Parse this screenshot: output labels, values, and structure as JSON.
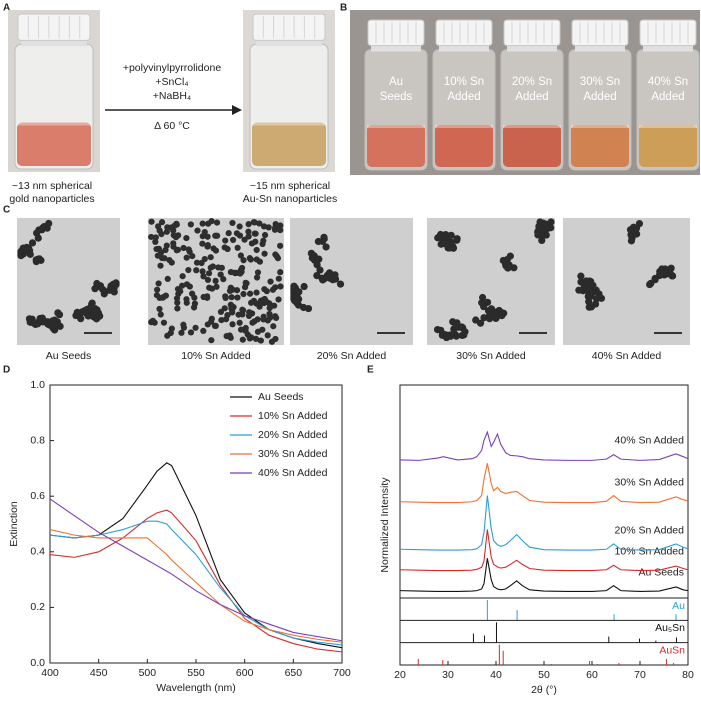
{
  "panel_a": {
    "label": "A",
    "reagents": [
      "+polyvinylpyrrolidone",
      "+SnCl₄",
      "+NaBH₄"
    ],
    "condition": "Δ 60 °C",
    "before": [
      "~13 nm spherical",
      "gold nanoparticles"
    ],
    "after": [
      "~15 nm spherical",
      "Au-Sn nanoparticles"
    ]
  },
  "panel_b": {
    "label": "B",
    "vials": [
      [
        "Au",
        "Seeds"
      ],
      [
        "10% Sn",
        "Added"
      ],
      [
        "20% Sn",
        "Added"
      ],
      [
        "30% Sn",
        "Added"
      ],
      [
        "40% Sn",
        "Added"
      ]
    ]
  },
  "panel_c": {
    "label": "C",
    "images": [
      "Au Seeds",
      "10% Sn Added",
      "20% Sn Added",
      "30% Sn Added",
      "40% Sn Added"
    ]
  },
  "chart_data": [
    {
      "type": "line",
      "label": "D",
      "xlabel": "Wavelength (nm)",
      "ylabel": "Extinction",
      "x": [
        400,
        425,
        450,
        475,
        500,
        510,
        520,
        525,
        550,
        575,
        600,
        625,
        650,
        675,
        700
      ],
      "xlim": [
        400,
        700
      ],
      "xticks": [
        400,
        450,
        500,
        550,
        600,
        650,
        700
      ],
      "ylim": [
        0,
        1
      ],
      "yticks": [
        {
          "value": 0,
          "label": "0.0"
        },
        0.2,
        0.4,
        0.6,
        0.8,
        {
          "value": 1,
          "label": "1.0"
        }
      ],
      "legend": "upper right",
      "series": [
        {
          "name": "Au Seeds",
          "color": "#111111",
          "values": [
            0.46,
            0.45,
            0.46,
            0.52,
            0.64,
            0.69,
            0.72,
            0.71,
            0.53,
            0.3,
            0.18,
            0.12,
            0.09,
            0.07,
            0.055
          ]
        },
        {
          "name": "10% Sn Added",
          "color": "#d42a2a",
          "values": [
            0.39,
            0.38,
            0.4,
            0.45,
            0.52,
            0.54,
            0.55,
            0.54,
            0.44,
            0.28,
            0.16,
            0.1,
            0.07,
            0.05,
            0.04
          ]
        },
        {
          "name": "20% Sn Added",
          "color": "#2a9fd6",
          "values": [
            0.46,
            0.45,
            0.46,
            0.48,
            0.51,
            0.51,
            0.5,
            0.48,
            0.39,
            0.27,
            0.17,
            0.12,
            0.09,
            0.075,
            0.065
          ]
        },
        {
          "name": "30% Sn Added",
          "color": "#f07030",
          "values": [
            0.48,
            0.46,
            0.45,
            0.45,
            0.45,
            0.42,
            0.39,
            0.37,
            0.29,
            0.21,
            0.15,
            0.12,
            0.1,
            0.085,
            0.075
          ]
        },
        {
          "name": "40% Sn Added",
          "color": "#7b3fb5",
          "values": [
            0.59,
            0.53,
            0.47,
            0.42,
            0.37,
            0.35,
            0.33,
            0.32,
            0.26,
            0.21,
            0.17,
            0.14,
            0.11,
            0.095,
            0.08
          ]
        }
      ]
    },
    {
      "type": "line",
      "label": "E",
      "xlabel": "2θ (°)",
      "ylabel": "Normalized Intensity",
      "x": [
        20,
        24,
        28,
        29,
        32,
        35,
        36,
        37,
        37.5,
        38.2,
        39,
        39.5,
        40.3,
        41,
        42,
        43,
        44.3,
        45.5,
        47,
        50,
        55,
        60,
        63,
        64.5,
        66,
        70,
        74,
        77.5,
        79,
        80
      ],
      "xlim": [
        20,
        80
      ],
      "xticks": [
        20,
        30,
        40,
        50,
        60,
        70,
        80
      ],
      "ylim": [
        0,
        5.2
      ],
      "series": [
        {
          "name": "Au Seeds",
          "color": "#111111",
          "values": [
            0.18,
            0.17,
            0.16,
            0.16,
            0.16,
            0.17,
            0.18,
            0.22,
            0.35,
            0.97,
            0.45,
            0.28,
            0.22,
            0.2,
            0.22,
            0.3,
            0.42,
            0.3,
            0.2,
            0.17,
            0.16,
            0.16,
            0.18,
            0.3,
            0.18,
            0.16,
            0.17,
            0.27,
            0.2,
            0.18
          ]
        },
        {
          "name": "10% Sn Added",
          "color": "#d42a2a",
          "values": [
            0.69,
            0.68,
            0.67,
            0.67,
            0.67,
            0.68,
            0.7,
            0.75,
            0.9,
            1.67,
            1.0,
            0.82,
            0.76,
            0.73,
            0.75,
            0.82,
            0.92,
            0.82,
            0.72,
            0.68,
            0.67,
            0.67,
            0.69,
            0.8,
            0.69,
            0.67,
            0.68,
            0.78,
            0.72,
            0.69
          ]
        },
        {
          "name": "20% Sn Added",
          "color": "#2a9fd6",
          "values": [
            1.19,
            1.18,
            1.17,
            1.17,
            1.17,
            1.18,
            1.2,
            1.3,
            1.6,
            2.5,
            1.7,
            1.4,
            1.3,
            1.26,
            1.3,
            1.4,
            1.55,
            1.4,
            1.24,
            1.18,
            1.17,
            1.17,
            1.19,
            1.32,
            1.19,
            1.17,
            1.18,
            1.32,
            1.24,
            1.2
          ]
        },
        {
          "name": "30% Sn Added",
          "color": "#f07030",
          "values": [
            2.35,
            2.34,
            2.33,
            2.33,
            2.33,
            2.35,
            2.38,
            2.5,
            2.9,
            3.29,
            2.8,
            2.62,
            2.7,
            2.6,
            2.55,
            2.58,
            2.6,
            2.5,
            2.38,
            2.34,
            2.33,
            2.33,
            2.36,
            2.5,
            2.36,
            2.33,
            2.34,
            2.47,
            2.4,
            2.37
          ]
        },
        {
          "name": "40% Sn Added",
          "color": "#7b3fb5",
          "values": [
            3.37,
            3.36,
            3.42,
            3.45,
            3.37,
            3.4,
            3.45,
            3.6,
            3.85,
            4.05,
            3.7,
            3.8,
            4.0,
            3.75,
            3.55,
            3.48,
            3.47,
            3.45,
            3.4,
            3.37,
            3.36,
            3.36,
            3.39,
            3.5,
            3.39,
            3.36,
            3.38,
            3.52,
            3.45,
            3.4
          ]
        }
      ],
      "references": [
        {
          "name": "Au",
          "color": "#2a9fd6",
          "x": [
            38.2,
            44.4,
            64.6,
            77.5
          ],
          "values": [
            1,
            0.5,
            0.3,
            0.3
          ]
        },
        {
          "name": "Au₅Sn",
          "color": "#111111",
          "x": [
            35.3,
            37.6,
            40.1,
            63.5,
            69.9,
            73.3,
            77.6
          ],
          "values": [
            0.45,
            0.35,
            1,
            0.3,
            0.2,
            0.1,
            0.25
          ]
        },
        {
          "name": "AuSn",
          "color": "#d42a2a",
          "x": [
            23.8,
            28.9,
            40.7,
            41.5,
            51.5,
            59.5,
            61.2,
            65.6,
            75.5,
            77
          ],
          "values": [
            0.3,
            0.25,
            1,
            0.7,
            0.05,
            0.2,
            0.05,
            0.1,
            0.3,
            0.1
          ]
        }
      ]
    }
  ]
}
